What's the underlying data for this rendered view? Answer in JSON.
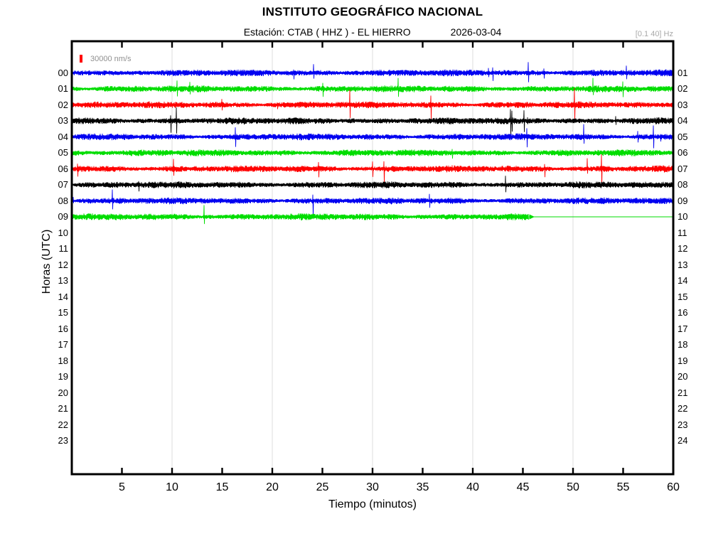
{
  "title": "INSTITUTO GEOGRÁFICO NACIONAL",
  "header": {
    "station_line": "Estación:  CTAB ( HHZ ) - EL HIERRO",
    "date": "2026-03-04",
    "filter_band": "[0.1 40] Hz"
  },
  "legend": {
    "scale_label": "30000 nm/s"
  },
  "axes": {
    "xlabel": "Tiempo (minutos)",
    "ylabel": "Horas (UTC)",
    "x_range": [
      0,
      60
    ],
    "x_ticks": [
      5,
      10,
      15,
      20,
      25,
      30,
      35,
      40,
      45,
      50,
      55,
      60
    ],
    "x_gridlines": [
      10,
      20,
      30,
      40,
      50
    ],
    "left_hour_labels": [
      "00",
      "01",
      "02",
      "03",
      "04",
      "05",
      "06",
      "07",
      "08",
      "09",
      "10",
      "11",
      "12",
      "13",
      "14",
      "15",
      "16",
      "17",
      "18",
      "19",
      "20",
      "21",
      "22",
      "23"
    ],
    "right_hour_labels": [
      "01",
      "02",
      "03",
      "04",
      "05",
      "06",
      "07",
      "08",
      "09",
      "10",
      "11",
      "12",
      "13",
      "14",
      "15",
      "16",
      "17",
      "18",
      "19",
      "20",
      "21",
      "22",
      "23",
      "24"
    ]
  },
  "colors": {
    "trace_cycle": [
      "#0000f0",
      "#00dd00",
      "#ff0000",
      "#000000"
    ],
    "scale_marker": "#ff0000",
    "grid": "#dcdcdc",
    "frame": "#000000"
  },
  "chart_data": {
    "type": "line",
    "x_unit": "minutes",
    "x_range_minutes": [
      0,
      60
    ],
    "amplitude_scale_nm_s": 30000,
    "rows": [
      {
        "hour_left": "00",
        "hour_right": "01",
        "color": "#0000f0",
        "has_data": true,
        "data_end_minute": 60
      },
      {
        "hour_left": "01",
        "hour_right": "02",
        "color": "#00dd00",
        "has_data": true,
        "data_end_minute": 60
      },
      {
        "hour_left": "02",
        "hour_right": "03",
        "color": "#ff0000",
        "has_data": true,
        "data_end_minute": 60
      },
      {
        "hour_left": "03",
        "hour_right": "04",
        "color": "#000000",
        "has_data": true,
        "data_end_minute": 60
      },
      {
        "hour_left": "04",
        "hour_right": "05",
        "color": "#0000f0",
        "has_data": true,
        "data_end_minute": 60
      },
      {
        "hour_left": "05",
        "hour_right": "06",
        "color": "#00dd00",
        "has_data": true,
        "data_end_minute": 60
      },
      {
        "hour_left": "06",
        "hour_right": "07",
        "color": "#ff0000",
        "has_data": true,
        "data_end_minute": 60
      },
      {
        "hour_left": "07",
        "hour_right": "08",
        "color": "#000000",
        "has_data": true,
        "data_end_minute": 60
      },
      {
        "hour_left": "08",
        "hour_right": "09",
        "color": "#0000f0",
        "has_data": true,
        "data_end_minute": 60
      },
      {
        "hour_left": "09",
        "hour_right": "10",
        "color": "#00dd00",
        "has_data": true,
        "data_end_minute": 45.6
      },
      {
        "hour_left": "10",
        "hour_right": "11",
        "color": "#ff0000",
        "has_data": false,
        "data_end_minute": 0
      },
      {
        "hour_left": "11",
        "hour_right": "12",
        "color": "#000000",
        "has_data": false,
        "data_end_minute": 0
      },
      {
        "hour_left": "12",
        "hour_right": "13",
        "color": "#0000f0",
        "has_data": false,
        "data_end_minute": 0
      },
      {
        "hour_left": "13",
        "hour_right": "14",
        "color": "#00dd00",
        "has_data": false,
        "data_end_minute": 0
      },
      {
        "hour_left": "14",
        "hour_right": "15",
        "color": "#ff0000",
        "has_data": false,
        "data_end_minute": 0
      },
      {
        "hour_left": "15",
        "hour_right": "16",
        "color": "#000000",
        "has_data": false,
        "data_end_minute": 0
      },
      {
        "hour_left": "16",
        "hour_right": "17",
        "color": "#0000f0",
        "has_data": false,
        "data_end_minute": 0
      },
      {
        "hour_left": "17",
        "hour_right": "18",
        "color": "#00dd00",
        "has_data": false,
        "data_end_minute": 0
      },
      {
        "hour_left": "18",
        "hour_right": "19",
        "color": "#ff0000",
        "has_data": false,
        "data_end_minute": 0
      },
      {
        "hour_left": "19",
        "hour_right": "20",
        "color": "#000000",
        "has_data": false,
        "data_end_minute": 0
      },
      {
        "hour_left": "20",
        "hour_right": "21",
        "color": "#0000f0",
        "has_data": false,
        "data_end_minute": 0
      },
      {
        "hour_left": "21",
        "hour_right": "22",
        "color": "#00dd00",
        "has_data": false,
        "data_end_minute": 0
      },
      {
        "hour_left": "22",
        "hour_right": "23",
        "color": "#ff0000",
        "has_data": false,
        "data_end_minute": 0
      },
      {
        "hour_left": "23",
        "hour_right": "24",
        "color": "#000000",
        "has_data": false,
        "data_end_minute": 0
      }
    ]
  }
}
